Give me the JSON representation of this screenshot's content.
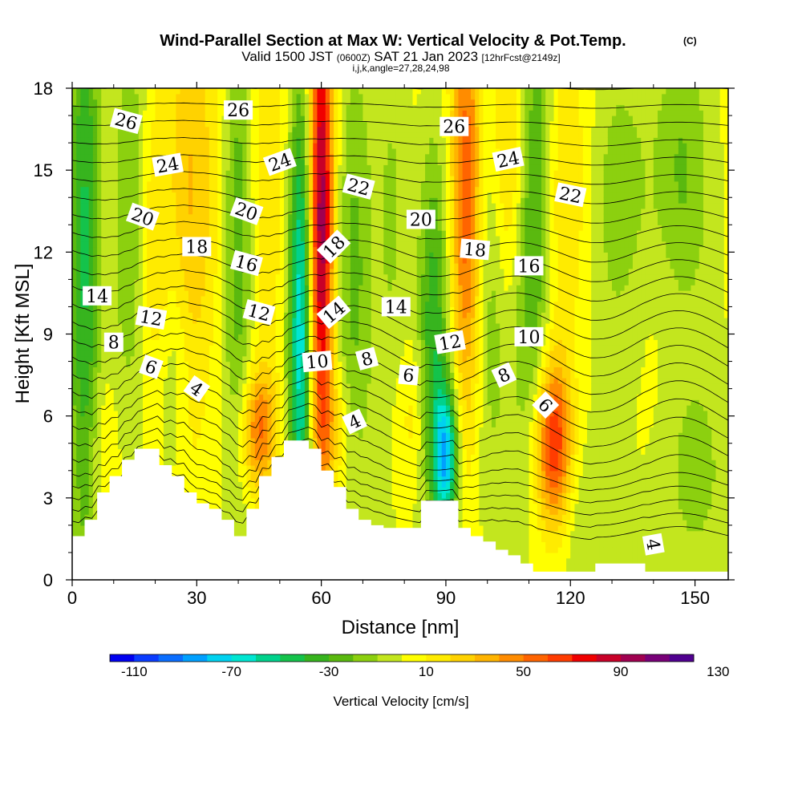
{
  "title": {
    "main": "Wind-Parallel Section at Max W: Vertical Velocity & Pot.Temp.",
    "mark": "(C)",
    "valid_prefix": "Valid 1500 JST",
    "valid_utc": "(0600Z)",
    "valid_date": "SAT 21 Jan 2023",
    "forecast": "[12hrFcst@2149z]",
    "indices": "i,j,k,angle=27,28,24,98"
  },
  "chart_data": {
    "type": "heatmap",
    "xlabel": "Distance [nm]",
    "ylabel": "Height [Kft MSL]",
    "xlim": [
      0,
      158
    ],
    "ylim": [
      0,
      18
    ],
    "x_ticks": [
      "0",
      "30",
      "60",
      "90",
      "120",
      "150"
    ],
    "y_ticks": [
      "0",
      "3",
      "6",
      "9",
      "12",
      "15",
      "18"
    ],
    "x_tick_values": [
      0,
      30,
      60,
      90,
      120,
      150
    ],
    "y_tick_values": [
      0,
      3,
      6,
      9,
      12,
      15,
      18
    ],
    "x_minor_step": 10,
    "y_minor_step": 1,
    "grid": false,
    "colorbar": {
      "label": "Vertical Velocity [cm/s]",
      "tick_labels": [
        "-110",
        "-70",
        "-30",
        "10",
        "50",
        "90",
        "130"
      ],
      "tick_values": [
        -110,
        -70,
        -30,
        10,
        50,
        90,
        130
      ],
      "min": -120,
      "step": 10,
      "colors": [
        "#0000f0",
        "#0a3cff",
        "#0a6eff",
        "#00a0ff",
        "#00d2f0",
        "#00e6d2",
        "#00d28c",
        "#14c34b",
        "#37b41e",
        "#5ab90f",
        "#8cd00f",
        "#c3e61e",
        "#ffff00",
        "#ffeb00",
        "#ffd200",
        "#ffb400",
        "#ff8c00",
        "#ff6400",
        "#ff3c00",
        "#f00000",
        "#c80028",
        "#a00050",
        "#780078",
        "#500090"
      ]
    },
    "terrain_profile": {
      "x": [
        0,
        3,
        3,
        6,
        6,
        9,
        9,
        12,
        12,
        15,
        15,
        18,
        18,
        21,
        21,
        24,
        24,
        27,
        27,
        30,
        30,
        33,
        33,
        36,
        36,
        39,
        39,
        42,
        42,
        45,
        45,
        48,
        48,
        51,
        51,
        54,
        54,
        57,
        57,
        60,
        60,
        63,
        63,
        66,
        66,
        69,
        69,
        72,
        72,
        75,
        75,
        78,
        78,
        81,
        81,
        84,
        84,
        87,
        87,
        90,
        90,
        93,
        93,
        96,
        96,
        99,
        99,
        102,
        102,
        105,
        105,
        108,
        108,
        111,
        111,
        114,
        114,
        117,
        117,
        120,
        120,
        126,
        126,
        132,
        132,
        138,
        138,
        144,
        144,
        158
      ],
      "y": [
        1.6,
        1.6,
        2.2,
        2.2,
        3.2,
        3.2,
        3.8,
        3.8,
        4.4,
        4.4,
        4.8,
        4.8,
        4.8,
        4.8,
        4.2,
        4.2,
        3.8,
        3.8,
        3.2,
        3.2,
        2.8,
        2.8,
        2.6,
        2.6,
        2.2,
        2.2,
        1.6,
        1.6,
        2.6,
        2.6,
        3.8,
        3.8,
        4.5,
        4.5,
        5.1,
        5.1,
        5.1,
        5.1,
        4.8,
        4.8,
        4.0,
        4.0,
        3.4,
        3.4,
        2.6,
        2.6,
        2.2,
        2.2,
        2.0,
        2.0,
        1.9,
        1.9,
        1.9,
        1.9,
        1.9,
        1.9,
        2.9,
        2.9,
        2.9,
        2.9,
        2.9,
        2.9,
        1.9,
        1.9,
        1.6,
        1.6,
        1.4,
        1.4,
        1.1,
        1.1,
        0.9,
        0.9,
        0.6,
        0.6,
        0.3,
        0.3,
        0.3,
        0.3,
        0.3,
        0.3,
        0.3,
        0.3,
        0.6,
        0.6,
        0.6,
        0.6,
        0.3,
        0.3,
        0.3,
        0.3
      ]
    },
    "velocity_features": [
      {
        "x": 3,
        "y": 13,
        "sx": 2.5,
        "sy": 9,
        "amp": -45
      },
      {
        "x": 7,
        "y": 5,
        "sx": 3,
        "sy": 2,
        "amp": 10
      },
      {
        "x": 14,
        "y": 14,
        "sx": 3,
        "sy": 5,
        "amp": -25
      },
      {
        "x": 20,
        "y": 12,
        "sx": 3,
        "sy": 4,
        "amp": 20
      },
      {
        "x": 25,
        "y": 8,
        "sx": 3,
        "sy": 3,
        "amp": -15
      },
      {
        "x": 28,
        "y": 13,
        "sx": 3,
        "sy": 7,
        "amp": 25
      },
      {
        "x": 33,
        "y": 14,
        "sx": 3,
        "sy": 6,
        "amp": 10
      },
      {
        "x": 40,
        "y": 13,
        "sx": 2.5,
        "sy": 6,
        "amp": -30
      },
      {
        "x": 45,
        "y": 5.5,
        "sx": 3,
        "sy": 1.6,
        "amp": 50
      },
      {
        "x": 47,
        "y": 14,
        "sx": 3,
        "sy": 5,
        "amp": 15
      },
      {
        "x": 55,
        "y": 9.5,
        "sx": 2,
        "sy": 6,
        "amp": -70
      },
      {
        "x": 60,
        "y": 13,
        "sx": 2,
        "sy": 6.5,
        "amp": 95
      },
      {
        "x": 63,
        "y": 5.5,
        "sx": 3,
        "sy": 1.5,
        "amp": 20
      },
      {
        "x": 68,
        "y": 12,
        "sx": 3,
        "sy": 6,
        "amp": -25
      },
      {
        "x": 77,
        "y": 14,
        "sx": 3,
        "sy": 5,
        "amp": -15
      },
      {
        "x": 82,
        "y": 6,
        "sx": 3,
        "sy": 2,
        "amp": 15
      },
      {
        "x": 87,
        "y": 9,
        "sx": 2.5,
        "sy": 5,
        "amp": -40
      },
      {
        "x": 90,
        "y": 4.5,
        "sx": 2,
        "sy": 1.8,
        "amp": -75
      },
      {
        "x": 95,
        "y": 14,
        "sx": 2.5,
        "sy": 6,
        "amp": 55
      },
      {
        "x": 101,
        "y": 11,
        "sx": 3,
        "sy": 5,
        "amp": -20
      },
      {
        "x": 105,
        "y": 15,
        "sx": 3,
        "sy": 4,
        "amp": 25
      },
      {
        "x": 109,
        "y": 10,
        "sx": 3,
        "sy": 4,
        "amp": -15
      },
      {
        "x": 112,
        "y": 15,
        "sx": 3,
        "sy": 5,
        "amp": -35
      },
      {
        "x": 116,
        "y": 5,
        "sx": 3,
        "sy": 2.2,
        "amp": 70
      },
      {
        "x": 118,
        "y": 14,
        "sx": 4,
        "sy": 4,
        "amp": 20
      },
      {
        "x": 124,
        "y": 2,
        "sx": 5,
        "sy": 2,
        "amp": -10
      },
      {
        "x": 132,
        "y": 14,
        "sx": 5,
        "sy": 4,
        "amp": -20
      },
      {
        "x": 140,
        "y": 9,
        "sx": 6,
        "sy": 3,
        "amp": 5
      },
      {
        "x": 147,
        "y": 15,
        "sx": 5,
        "sy": 4,
        "amp": -25
      },
      {
        "x": 150,
        "y": 4,
        "sx": 5,
        "sy": 2.5,
        "amp": -15
      }
    ],
    "theta_contours": {
      "levels_min": 2,
      "levels_max": 28,
      "step": 1
    },
    "contour_labels": [
      {
        "x": 13,
        "y": 16.8,
        "text": "26",
        "angle": 15
      },
      {
        "x": 40,
        "y": 17.2,
        "text": "26",
        "angle": 0
      },
      {
        "x": 92,
        "y": 16.6,
        "text": "26",
        "angle": 0
      },
      {
        "x": 23,
        "y": 15.2,
        "text": "24",
        "angle": -10
      },
      {
        "x": 50,
        "y": 15.3,
        "text": "24",
        "angle": -20
      },
      {
        "x": 105,
        "y": 15.4,
        "text": "24",
        "angle": -12
      },
      {
        "x": 69,
        "y": 14.4,
        "text": "22",
        "angle": 15
      },
      {
        "x": 120,
        "y": 14.1,
        "text": "22",
        "angle": 12
      },
      {
        "x": 17,
        "y": 13.3,
        "text": "20",
        "angle": 20
      },
      {
        "x": 42,
        "y": 13.5,
        "text": "20",
        "angle": 20
      },
      {
        "x": 84,
        "y": 13.2,
        "text": "20",
        "angle": 0
      },
      {
        "x": 30,
        "y": 12.2,
        "text": "18",
        "angle": 0
      },
      {
        "x": 63,
        "y": 12.2,
        "text": "18",
        "angle": -45
      },
      {
        "x": 97,
        "y": 12.1,
        "text": "18",
        "angle": 5
      },
      {
        "x": 42,
        "y": 11.6,
        "text": "16",
        "angle": 15
      },
      {
        "x": 110,
        "y": 11.5,
        "text": "16",
        "angle": 0
      },
      {
        "x": 6,
        "y": 10.4,
        "text": "14",
        "angle": 0
      },
      {
        "x": 63,
        "y": 9.8,
        "text": "14",
        "angle": -40
      },
      {
        "x": 78,
        "y": 10.0,
        "text": "14",
        "angle": 0
      },
      {
        "x": 19,
        "y": 9.6,
        "text": "12",
        "angle": 10
      },
      {
        "x": 45,
        "y": 9.8,
        "text": "12",
        "angle": 15
      },
      {
        "x": 91,
        "y": 8.7,
        "text": "12",
        "angle": -10
      },
      {
        "x": 110,
        "y": 8.9,
        "text": "10",
        "angle": 0
      },
      {
        "x": 10,
        "y": 8.7,
        "text": "8",
        "angle": 0
      },
      {
        "x": 59,
        "y": 8.0,
        "text": "10",
        "angle": -5
      },
      {
        "x": 71,
        "y": 8.1,
        "text": "8",
        "angle": -15
      },
      {
        "x": 19,
        "y": 7.8,
        "text": "6",
        "angle": 20
      },
      {
        "x": 81,
        "y": 7.5,
        "text": "6",
        "angle": 5
      },
      {
        "x": 104,
        "y": 7.5,
        "text": "8",
        "angle": -25
      },
      {
        "x": 30,
        "y": 7.0,
        "text": "4",
        "angle": 35
      },
      {
        "x": 114,
        "y": 6.4,
        "text": "6",
        "angle": 45
      },
      {
        "x": 68,
        "y": 5.8,
        "text": "4",
        "angle": -25
      },
      {
        "x": 140,
        "y": 1.3,
        "text": "4",
        "angle": 80
      }
    ]
  }
}
